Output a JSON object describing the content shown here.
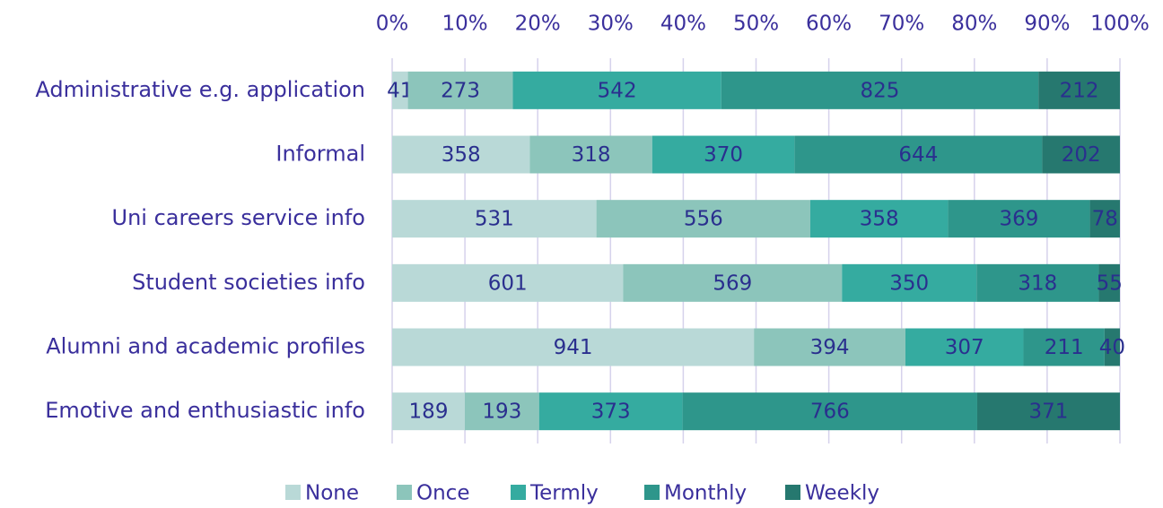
{
  "chart_data": {
    "type": "bar",
    "orientation": "horizontal",
    "stacking": "percent",
    "categories": [
      "Administrative e.g. application",
      "Informal",
      "Uni careers service info",
      "Student societies info",
      "Alumni and academic profiles",
      "Emotive and enthusiastic info"
    ],
    "series": [
      {
        "name": "None",
        "color": "#b9d9d7",
        "values": [
          41,
          358,
          531,
          601,
          941,
          189
        ]
      },
      {
        "name": "Once",
        "color": "#8cc5bb",
        "values": [
          273,
          318,
          556,
          569,
          394,
          193
        ]
      },
      {
        "name": "Termly",
        "color": "#35aba0",
        "values": [
          542,
          370,
          358,
          350,
          307,
          373
        ]
      },
      {
        "name": "Monthly",
        "color": "#2e968b",
        "values": [
          825,
          644,
          369,
          318,
          211,
          766
        ]
      },
      {
        "name": "Weekly",
        "color": "#26786f",
        "values": [
          212,
          202,
          78,
          55,
          40,
          371
        ]
      }
    ],
    "xlim": [
      0,
      100
    ],
    "xticks": [
      {
        "value": 0,
        "label": "0%"
      },
      {
        "value": 10,
        "label": "10%"
      },
      {
        "value": 20,
        "label": "20%"
      },
      {
        "value": 30,
        "label": "30%"
      },
      {
        "value": 40,
        "label": "40%"
      },
      {
        "value": 50,
        "label": "50%"
      },
      {
        "value": 60,
        "label": "60%"
      },
      {
        "value": 70,
        "label": "70%"
      },
      {
        "value": 80,
        "label": "80%"
      },
      {
        "value": 90,
        "label": "90%"
      },
      {
        "value": 100,
        "label": "100%"
      }
    ],
    "grid": true,
    "legend": "bottom"
  }
}
